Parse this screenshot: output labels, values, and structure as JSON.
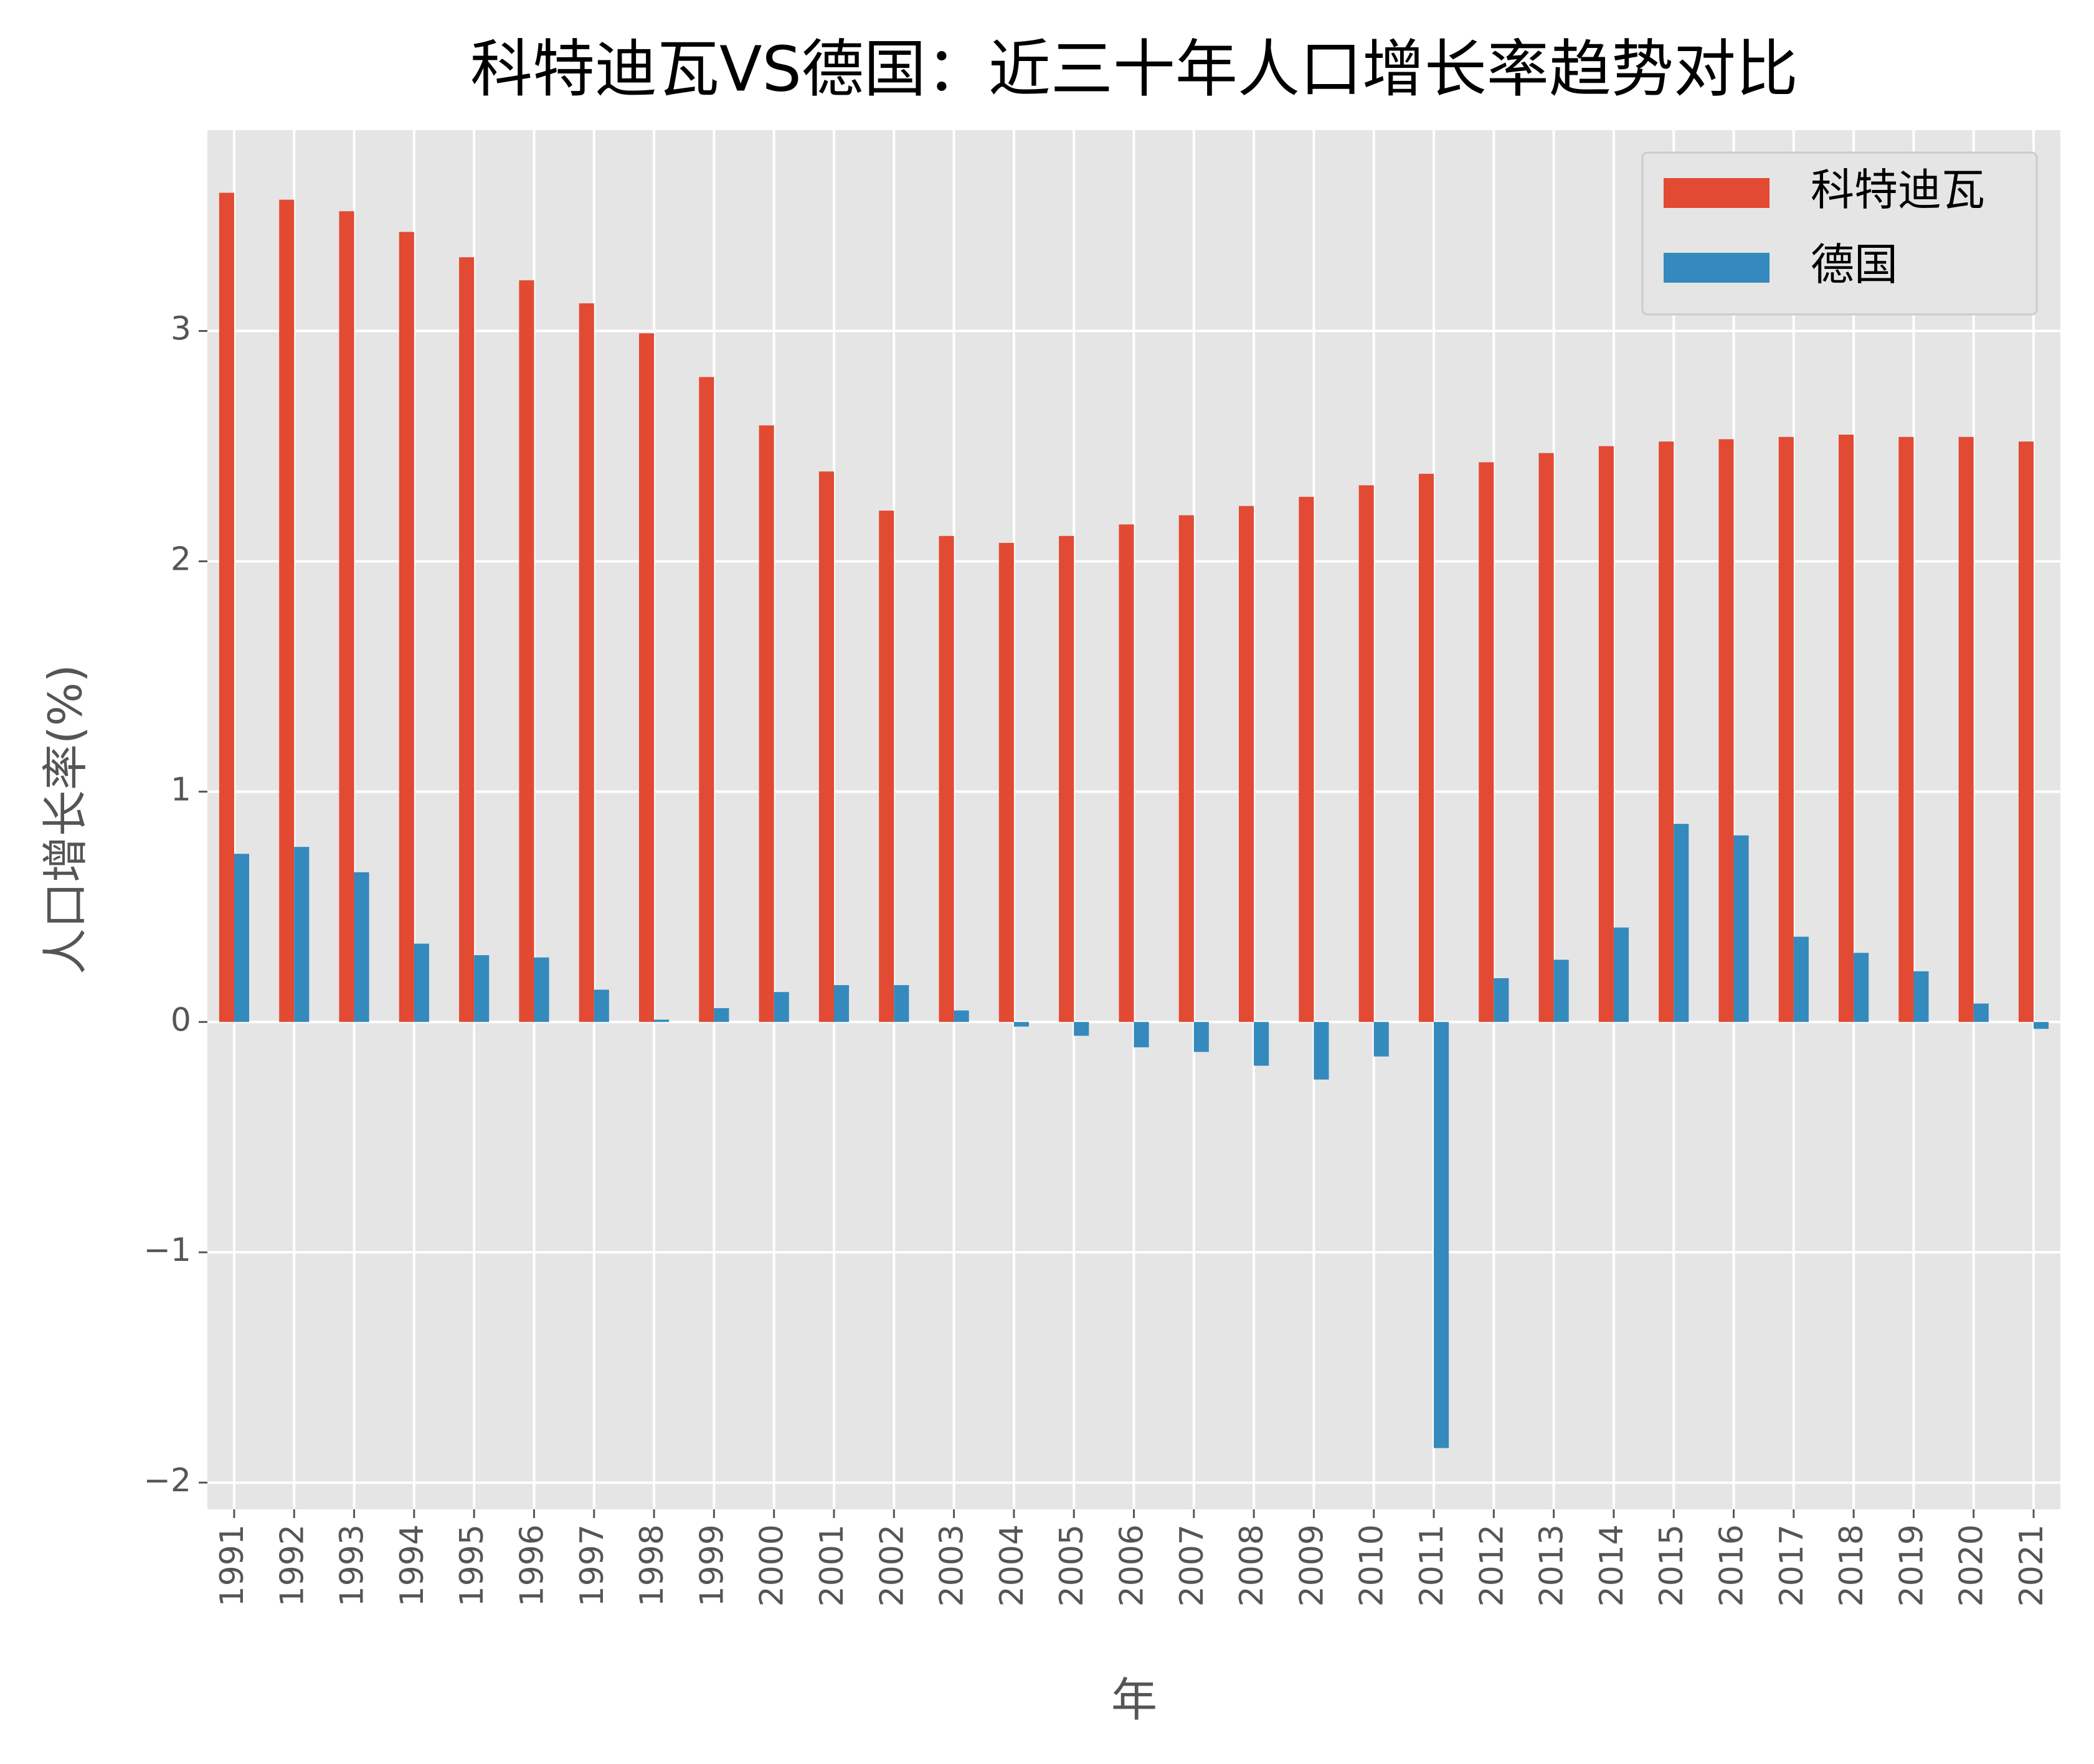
{
  "chart_data": {
    "type": "bar",
    "title": "科特迪瓦VS德国：近三十年人口增长率趋势对比",
    "x_label": "年",
    "y_label": "人口增长率(%)",
    "categories": [
      "1991",
      "1992",
      "1993",
      "1994",
      "1995",
      "1996",
      "1997",
      "1998",
      "1999",
      "2000",
      "2001",
      "2002",
      "2003",
      "2004",
      "2005",
      "2006",
      "2007",
      "2008",
      "2009",
      "2010",
      "2011",
      "2012",
      "2013",
      "2014",
      "2015",
      "2016",
      "2017",
      "2018",
      "2019",
      "2020",
      "2021"
    ],
    "series": [
      {
        "name": "科特迪瓦",
        "color": "#E24A33",
        "values": [
          3.6,
          3.57,
          3.52,
          3.43,
          3.32,
          3.22,
          3.12,
          2.99,
          2.8,
          2.59,
          2.39,
          2.22,
          2.11,
          2.08,
          2.11,
          2.16,
          2.2,
          2.24,
          2.28,
          2.33,
          2.38,
          2.43,
          2.47,
          2.5,
          2.52,
          2.53,
          2.54,
          2.55,
          2.54,
          2.54,
          2.52
        ]
      },
      {
        "name": "德国",
        "color": "#348ABD",
        "values": [
          0.73,
          0.76,
          0.65,
          0.34,
          0.29,
          0.28,
          0.14,
          0.01,
          0.06,
          0.13,
          0.16,
          0.16,
          0.05,
          -0.02,
          -0.06,
          -0.11,
          -0.13,
          -0.19,
          -0.25,
          -0.15,
          -1.85,
          0.19,
          0.27,
          0.41,
          0.86,
          0.81,
          0.37,
          0.3,
          0.22,
          0.08,
          -0.03
        ]
      }
    ],
    "ylim": [
      -2.116,
      3.872
    ],
    "yticks": [
      {
        "value": -2,
        "label": "−2"
      },
      {
        "value": -1,
        "label": "−1"
      },
      0,
      1,
      2,
      3
    ],
    "grid": true,
    "legend": "upper right"
  }
}
